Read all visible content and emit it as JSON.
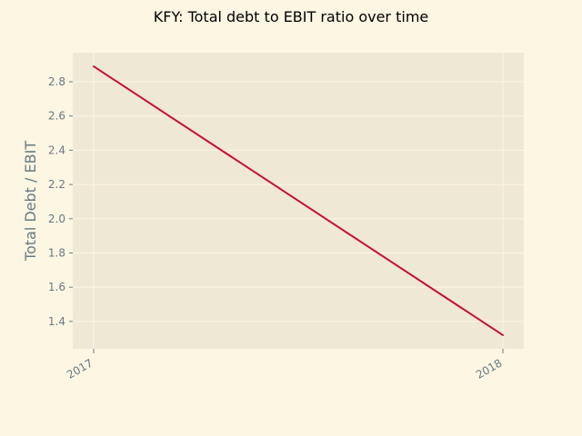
{
  "chart_data": {
    "type": "line",
    "title": "KFY: Total debt to EBIT ratio over time",
    "xlabel": "",
    "ylabel": "Total Debt / EBIT",
    "x": [
      "2017",
      "2018"
    ],
    "series": [
      {
        "values": [
          2.89,
          1.32
        ],
        "color": "#c70f36"
      }
    ],
    "ylim": [
      1.24,
      2.97
    ],
    "yticks": [
      "1.4",
      "1.6",
      "1.8",
      "2.0",
      "2.2",
      "2.4",
      "2.6",
      "2.8"
    ],
    "grid": true,
    "legend": "none",
    "colors": {
      "figure_bg": "#fdf6e3",
      "axes_bg": "#eee8d5",
      "grid": "#fdf6e3",
      "text": "#657b83",
      "title": "#000000"
    }
  }
}
